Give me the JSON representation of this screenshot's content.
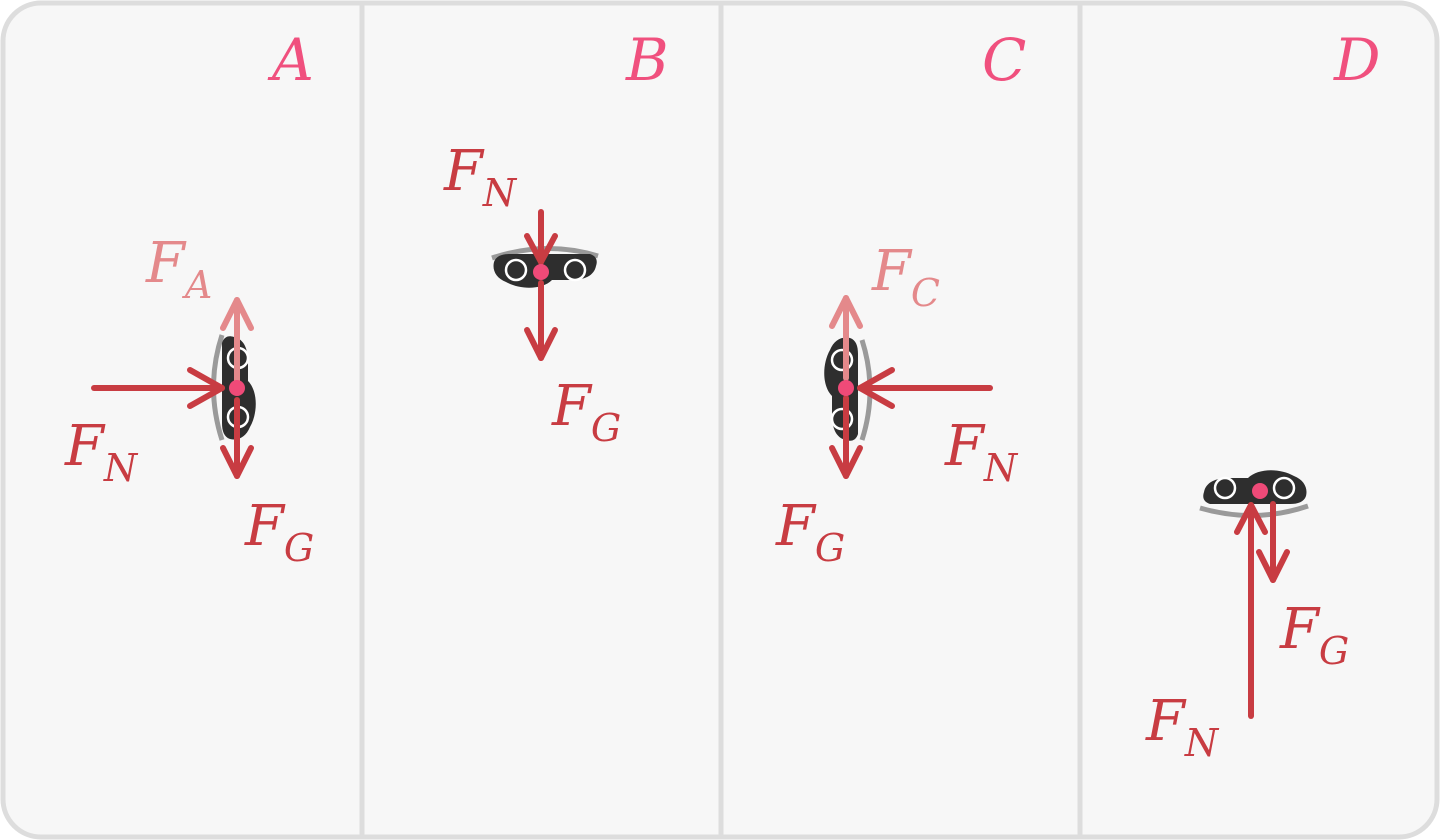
{
  "colors": {
    "background": "#f7f7f7",
    "border": "#dddddd",
    "force": "#c83c42",
    "force_light": "#e4898b",
    "letter": "#f0507e",
    "car": "#2e2e2e",
    "track": "#9a9a9a",
    "center_dot": "#ef4a78"
  },
  "panels": [
    {
      "letter": "A",
      "forces": [
        {
          "label": "F",
          "sub": "N",
          "tone": "normal"
        },
        {
          "label": "F",
          "sub": "G",
          "tone": "normal"
        },
        {
          "label": "F",
          "sub": "A",
          "tone": "light"
        }
      ]
    },
    {
      "letter": "B",
      "forces": [
        {
          "label": "F",
          "sub": "N",
          "tone": "normal"
        },
        {
          "label": "F",
          "sub": "G",
          "tone": "normal"
        }
      ]
    },
    {
      "letter": "C",
      "forces": [
        {
          "label": "F",
          "sub": "C",
          "tone": "light"
        },
        {
          "label": "F",
          "sub": "N",
          "tone": "normal"
        },
        {
          "label": "F",
          "sub": "G",
          "tone": "normal"
        }
      ]
    },
    {
      "letter": "D",
      "forces": [
        {
          "label": "F",
          "sub": "G",
          "tone": "normal"
        },
        {
          "label": "F",
          "sub": "N",
          "tone": "normal"
        }
      ]
    }
  ]
}
